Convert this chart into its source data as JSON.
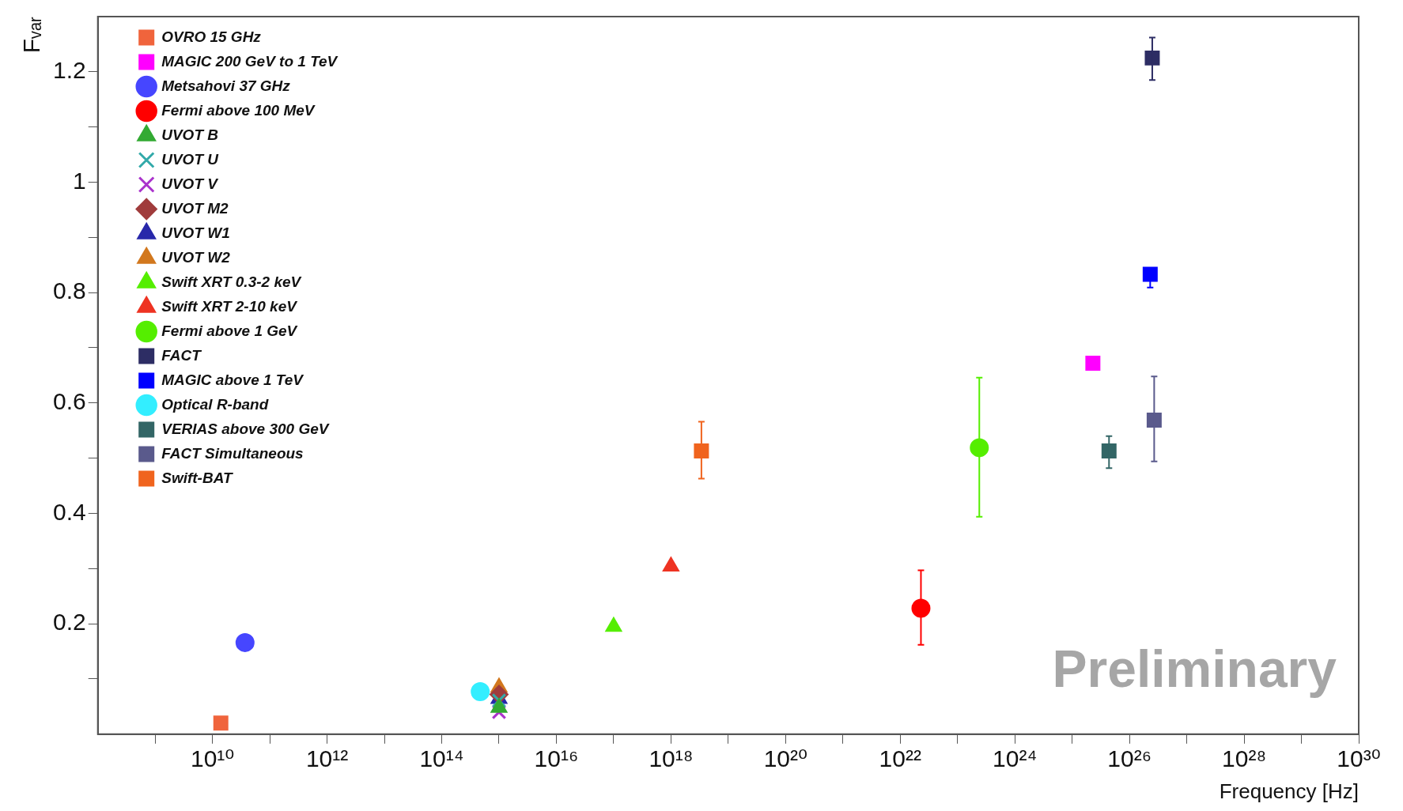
{
  "chart_data": {
    "type": "scatter",
    "xlabel": "Frequency [Hz]",
    "ylabel": "Fᵥₐᵣ",
    "log": "x",
    "legend": "top left",
    "grid": false,
    "xlim": [
      100000000.0,
      1e+30
    ],
    "xticks": [
      {
        "value": 1000000000.0,
        "label": null
      },
      {
        "value": 10000000000.0,
        "label": "10¹⁰"
      },
      {
        "value": 100000000000.0,
        "label": null
      },
      {
        "value": 1000000000000.0,
        "label": "10¹²"
      },
      {
        "value": 10000000000000.0,
        "label": null
      },
      {
        "value": 100000000000000.0,
        "label": "10¹⁴"
      },
      {
        "value": 1000000000000000.0,
        "label": null
      },
      {
        "value": 1e+16,
        "label": "10¹⁶"
      },
      {
        "value": 1e+17,
        "label": null
      },
      {
        "value": 1e+18,
        "label": "10¹⁸"
      },
      {
        "value": 1e+19,
        "label": null
      },
      {
        "value": 1e+20,
        "label": "10²⁰"
      },
      {
        "value": 1e+21,
        "label": null
      },
      {
        "value": 1e+22,
        "label": "10²²"
      },
      {
        "value": 1e+23,
        "label": null
      },
      {
        "value": 1e+24,
        "label": "10²⁴"
      },
      {
        "value": 1e+25,
        "label": null
      },
      {
        "value": 1e+26,
        "label": "10²⁶"
      },
      {
        "value": 1e+27,
        "label": null
      },
      {
        "value": 1e+28,
        "label": "10²⁸"
      },
      {
        "value": 1e+29,
        "label": null
      },
      {
        "value": 1e+30,
        "label": "10³⁰"
      }
    ],
    "ylim": [
      0,
      1.3
    ],
    "yticks": [
      {
        "value": 0.1,
        "label": null
      },
      0.2,
      {
        "value": 0.3,
        "label": null
      },
      0.4,
      {
        "value": 0.5,
        "label": null
      },
      0.6,
      {
        "value": 0.7,
        "label": null
      },
      0.8,
      {
        "value": 0.9,
        "label": null
      },
      1,
      {
        "value": 1.1,
        "label": null
      },
      1.2
    ],
    "annotations": [
      "Preliminary"
    ],
    "series": [
      {
        "name": "OVRO 15 GHz",
        "color": "#f0643c",
        "marker": "square",
        "x": [
          14000000000.0
        ],
        "values": [
          0.02
        ]
      },
      {
        "name": "MAGIC 200 GeV to 1 TeV",
        "color": "#ff00ff",
        "marker": "square",
        "x": [
          2.3e+25
        ],
        "values": [
          0.672
        ]
      },
      {
        "name": "Metsahovi 37 GHz",
        "color": "#4646ff",
        "marker": "circle",
        "x": [
          37000000000.0
        ],
        "values": [
          0.166
        ]
      },
      {
        "name": "Fermi above 100 MeV",
        "color": "#ff0000",
        "marker": "circle",
        "x": [
          2.3e+22
        ],
        "values": [
          0.228
        ],
        "errors": [
          [
            0.162,
            0.297
          ]
        ]
      },
      {
        "name": "UVOT B",
        "color": "#33aa33",
        "marker": "triangle",
        "x": [
          1000000000000000.0
        ],
        "values": [
          0.048
        ]
      },
      {
        "name": "UVOT U",
        "color": "#33aaaa",
        "marker": "cross",
        "x": [
          1000000000000000.0
        ],
        "values": [
          0.061
        ]
      },
      {
        "name": "UVOT V",
        "color": "#aa33cc",
        "marker": "cross",
        "x": [
          1000000000000000.0
        ],
        "values": [
          0.04
        ]
      },
      {
        "name": "UVOT M2",
        "color": "#a03c3c",
        "marker": "diamond",
        "x": [
          1000000000000000.0
        ],
        "values": [
          0.072
        ]
      },
      {
        "name": "UVOT W1",
        "color": "#2828aa",
        "marker": "triangle",
        "x": [
          1000000000000000.0
        ],
        "values": [
          0.064
        ]
      },
      {
        "name": "UVOT W2",
        "color": "#d2781e",
        "marker": "triangle",
        "x": [
          1000000000000000.0
        ],
        "values": [
          0.085
        ]
      },
      {
        "name": "Swift XRT 0.3-2 keV",
        "color": "#55ee00",
        "marker": "triangle",
        "x": [
          1e+17
        ],
        "values": [
          0.195
        ]
      },
      {
        "name": "Swift XRT 2-10 keV",
        "color": "#ee3322",
        "marker": "triangle",
        "x": [
          1e+18
        ],
        "values": [
          0.304
        ]
      },
      {
        "name": "Fermi above 1 GeV",
        "color": "#55ee00",
        "marker": "circle",
        "x": [
          2.4e+23
        ],
        "values": [
          0.519
        ],
        "errors": [
          [
            0.394,
            0.646
          ]
        ]
      },
      {
        "name": "FACT",
        "color": "#2d2d64",
        "marker": "square",
        "x": [
          2.5e+26
        ],
        "values": [
          1.225
        ],
        "errors": [
          [
            1.185,
            1.262
          ]
        ]
      },
      {
        "name": "MAGIC above 1 TeV",
        "color": "#0000ff",
        "marker": "square",
        "x": [
          2.3e+26
        ],
        "values": [
          0.833
        ],
        "errors": [
          [
            0.809,
            0.833
          ]
        ]
      },
      {
        "name": "Optical R-band",
        "color": "#33eeff",
        "marker": "circle",
        "x": [
          470000000000000.0
        ],
        "values": [
          0.077
        ]
      },
      {
        "name": "VERIAS above 300 GeV",
        "color": "#336666",
        "marker": "square",
        "x": [
          4.4e+25
        ],
        "values": [
          0.513
        ],
        "errors": [
          [
            0.482,
            0.54
          ]
        ]
      },
      {
        "name": "FACT Simultaneous",
        "color": "#5a5a8c",
        "marker": "square",
        "x": [
          2.7e+26
        ],
        "values": [
          0.569
        ],
        "errors": [
          [
            0.494,
            0.648
          ]
        ]
      },
      {
        "name": "Swift-BAT",
        "color": "#f0641e",
        "marker": "square",
        "x": [
          3.4e+18
        ],
        "values": [
          0.513
        ],
        "errors": [
          [
            0.463,
            0.566
          ]
        ]
      }
    ]
  }
}
